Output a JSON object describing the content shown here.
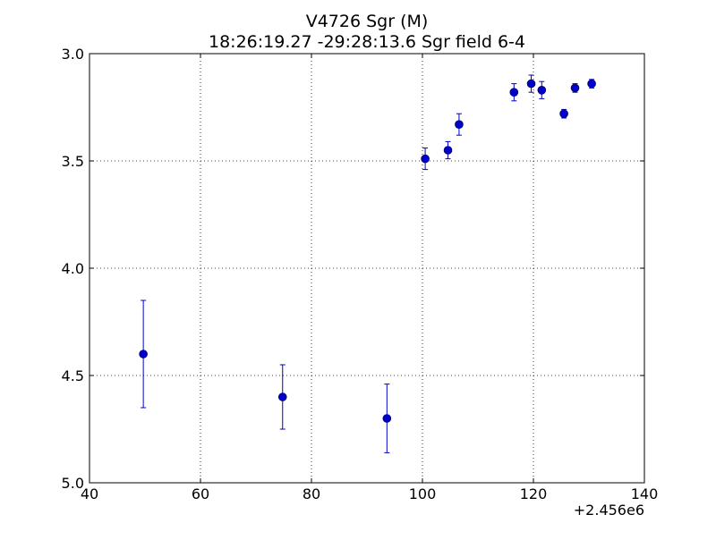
{
  "chart_data": {
    "type": "scatter",
    "title": "V4726 Sgr  (M)",
    "subtitle": "18:26:19.27 -29:28:13.6 Sgr field 6-4",
    "xlabel": "",
    "ylabel": "",
    "x_offset_label": "+2.456e6",
    "xlim": [
      40,
      140
    ],
    "ylim": [
      5.0,
      3.0
    ],
    "y_inverted": true,
    "x_ticks": [
      40,
      60,
      80,
      100,
      120,
      140
    ],
    "x_tick_labels": [
      "40",
      "60",
      "80",
      "100",
      "120",
      "140"
    ],
    "y_ticks": [
      3.0,
      3.5,
      4.0,
      4.5,
      5.0
    ],
    "y_tick_labels": [
      "3.0",
      "3.5",
      "4.0",
      "4.5",
      "5.0"
    ],
    "grid": true,
    "marker_color": "#0000cc",
    "errorbar_color": "#0000cc",
    "series": [
      {
        "points": [
          {
            "x": 49.7,
            "y": 4.4,
            "err": 0.25
          },
          {
            "x": 74.8,
            "y": 4.6,
            "err": 0.15
          },
          {
            "x": 93.6,
            "y": 4.7,
            "err": 0.16
          },
          {
            "x": 100.5,
            "y": 3.49,
            "err": 0.05
          },
          {
            "x": 104.6,
            "y": 3.45,
            "err": 0.04
          },
          {
            "x": 106.6,
            "y": 3.33,
            "err": 0.05
          },
          {
            "x": 116.5,
            "y": 3.18,
            "err": 0.04
          },
          {
            "x": 119.6,
            "y": 3.14,
            "err": 0.04
          },
          {
            "x": 121.5,
            "y": 3.17,
            "err": 0.04
          },
          {
            "x": 125.5,
            "y": 3.28,
            "err": 0.02
          },
          {
            "x": 127.5,
            "y": 3.16,
            "err": 0.02
          },
          {
            "x": 130.5,
            "y": 3.14,
            "err": 0.02
          }
        ]
      }
    ]
  }
}
